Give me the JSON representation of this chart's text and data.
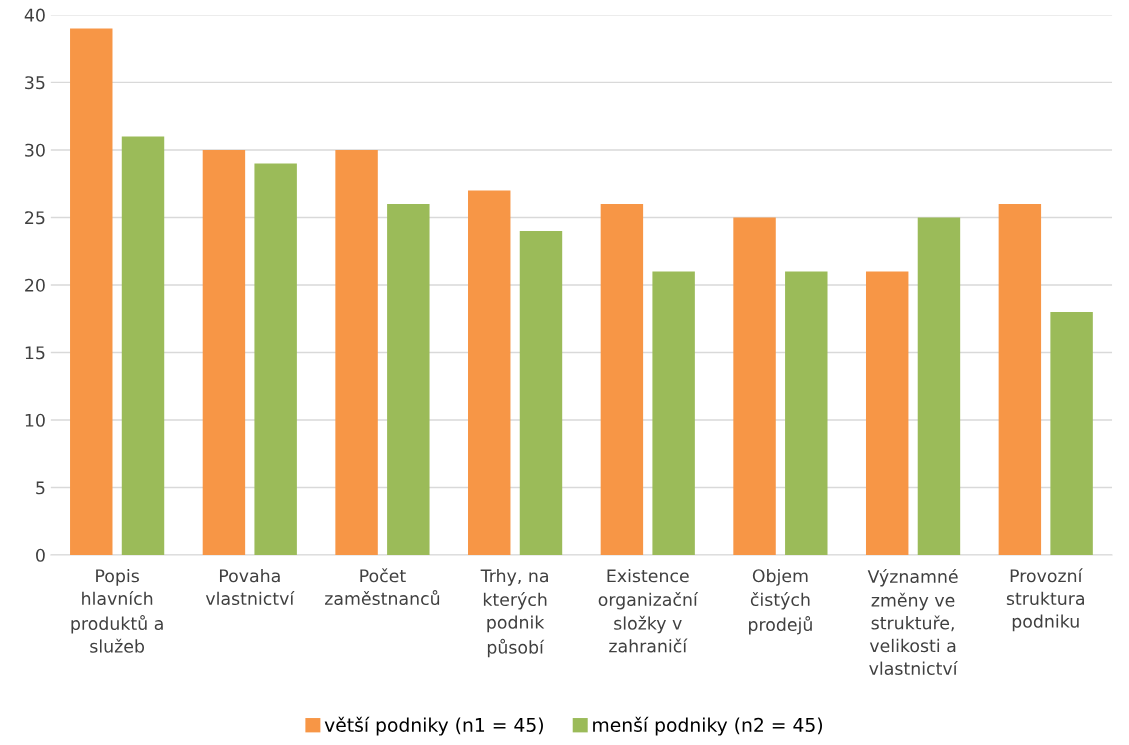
{
  "chart_data": {
    "type": "bar",
    "categories": [
      "Popis\nhlavních\nproduktů a\nslužeb",
      "Povaha\nvlastnictví",
      "Počet\nzaměstnanců",
      "Trhy, na\nkterých\npodnik\npůsobí",
      "Existence\norganizační\nsložky v\nzahraničí",
      "Objem\nčistých\nprodejů",
      "Významné\nzměny ve\nstruktuře,\nvelikosti a\nvlastnictví",
      "Provozní\nstruktura\npodniku"
    ],
    "series": [
      {
        "name": "větší podniky (n1 = 45)",
        "color": "#f79646",
        "values": [
          39,
          30,
          30,
          27,
          26,
          25,
          21,
          26
        ]
      },
      {
        "name": "menší podniky (n2 = 45)",
        "color": "#9bbb59",
        "values": [
          31,
          29,
          26,
          24,
          21,
          21,
          25,
          18
        ]
      }
    ],
    "ylim": [
      0,
      40
    ],
    "yticks": [
      0,
      5,
      10,
      15,
      20,
      25,
      30,
      35,
      40
    ],
    "grid": "y",
    "legend": "bottom"
  }
}
